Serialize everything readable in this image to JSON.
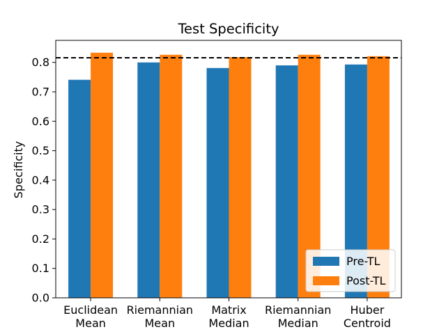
{
  "chart_data": {
    "type": "bar",
    "title": "Test Specificity",
    "xlabel": "",
    "ylabel": "Specificity",
    "categories": [
      "Euclidean\nMean",
      "Riemannian\nMean",
      "Matrix\nMedian",
      "Riemannian\nMedian",
      "Huber\nCentroid"
    ],
    "series": [
      {
        "name": "Pre-TL",
        "color": "#1f77b4",
        "values": [
          0.741,
          0.8,
          0.781,
          0.79,
          0.793
        ]
      },
      {
        "name": "Post-TL",
        "color": "#ff7f0e",
        "values": [
          0.833,
          0.826,
          0.818,
          0.826,
          0.821
        ]
      }
    ],
    "reference_line": {
      "y": 0.816,
      "style": "dashed",
      "color": "#000000"
    },
    "ylim": [
      0,
      0.875
    ],
    "yticks": [
      "0.0",
      "0.1",
      "0.2",
      "0.3",
      "0.4",
      "0.5",
      "0.6",
      "0.7",
      "0.8"
    ],
    "grid": false,
    "legend_position": "lower-right"
  }
}
